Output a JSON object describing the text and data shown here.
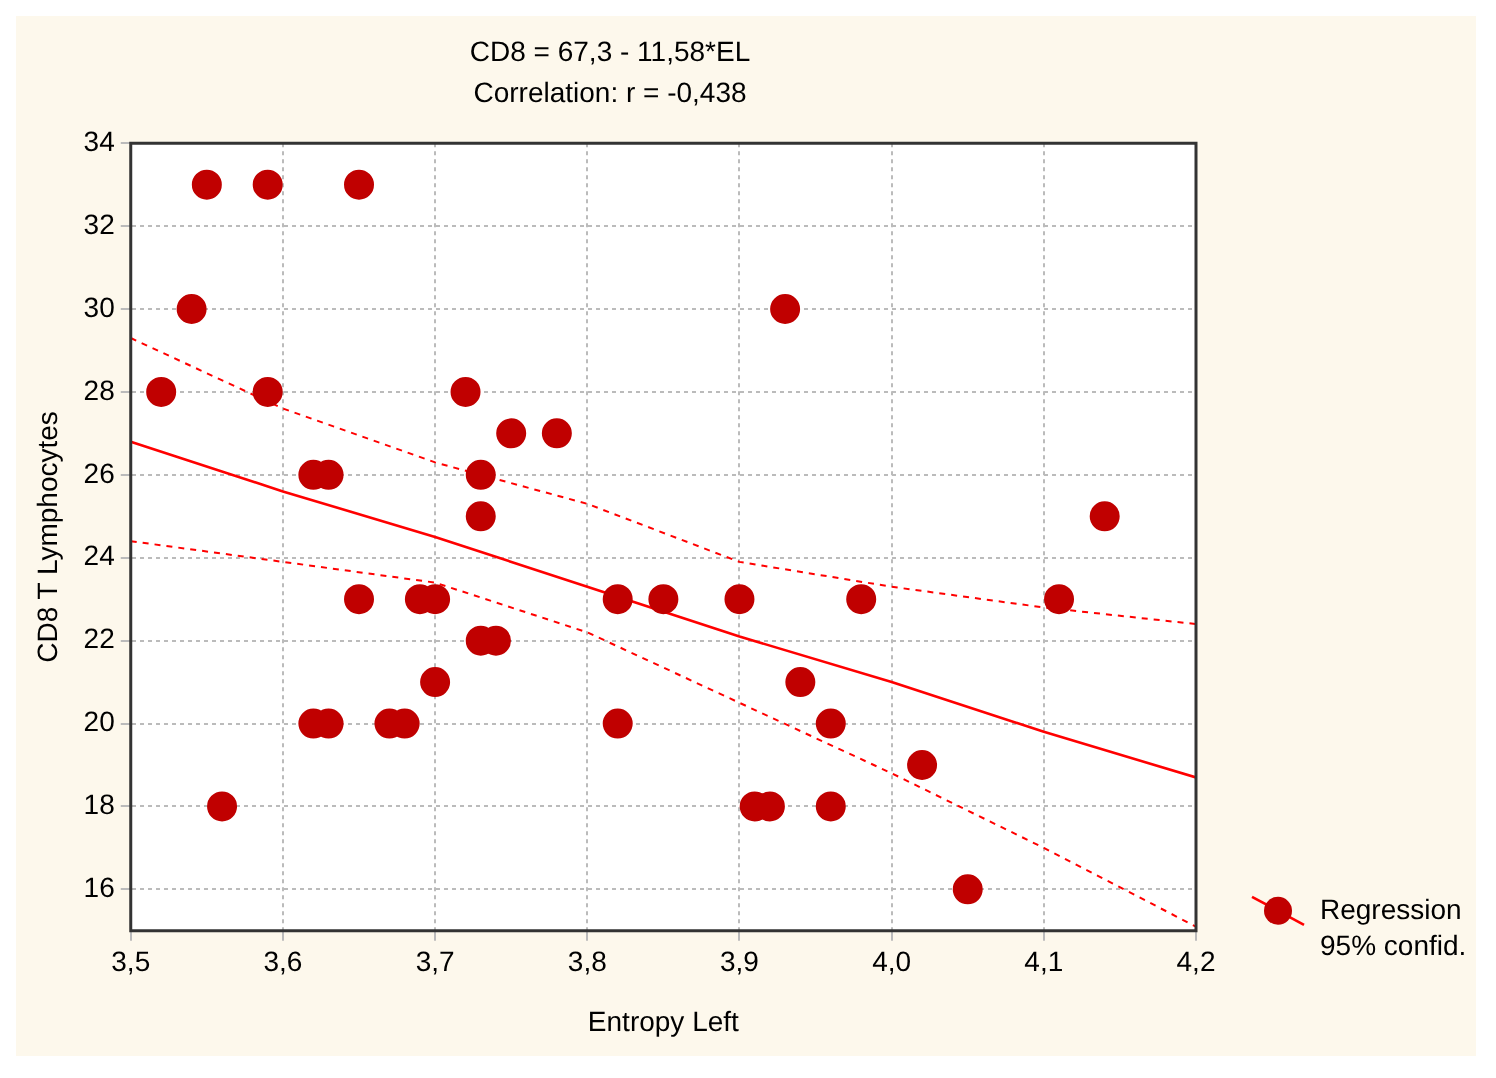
{
  "chart_data": {
    "type": "scatter",
    "title": "CD8 = 67,3 - 11,58*EL",
    "subtitle": "Correlation: r = -0,438",
    "xlabel": "Entropy Left",
    "ylabel": "CD8 T Lymphocytes",
    "series": [
      {
        "name": "Regression 95% confid.",
        "color": "#c00000",
        "marker": "circle",
        "x": [
          3.52,
          3.54,
          3.55,
          3.56,
          3.59,
          3.59,
          3.62,
          3.63,
          3.62,
          3.63,
          3.65,
          3.65,
          3.67,
          3.68,
          3.69,
          3.7,
          3.7,
          3.72,
          3.73,
          3.73,
          3.73,
          3.74,
          3.75,
          3.78,
          3.82,
          3.82,
          3.85,
          3.9,
          3.93,
          3.94,
          3.91,
          3.92,
          3.96,
          3.96,
          3.98,
          4.02,
          4.05,
          4.11,
          4.14
        ],
        "values": [
          28,
          30,
          33,
          18,
          33,
          28,
          26,
          26,
          20,
          20,
          33,
          23,
          20,
          20,
          23,
          23,
          21,
          28,
          26,
          25,
          22,
          22,
          27,
          27,
          23,
          20,
          23,
          23,
          30,
          21,
          18,
          18,
          20,
          18,
          23,
          19,
          16,
          23,
          25
        ]
      },
      {
        "type": "line",
        "color": "#ff0000",
        "line_style": "solid",
        "marker": "none",
        "x": [
          3.5,
          3.6,
          3.7,
          3.8,
          3.9,
          4.0,
          4.1,
          4.2
        ],
        "values": [
          26.8,
          25.6,
          24.5,
          23.3,
          22.1,
          21.0,
          19.8,
          18.7
        ]
      },
      {
        "type": "line",
        "color": "#ff0000",
        "line_style": "dotted",
        "marker": "none",
        "x": [
          3.5,
          3.6,
          3.7,
          3.8,
          3.9,
          4.0,
          4.1,
          4.2
        ],
        "values": [
          24.4,
          23.9,
          23.4,
          22.2,
          20.5,
          18.8,
          17.0,
          15.1
        ]
      },
      {
        "type": "line",
        "color": "#ff0000",
        "line_style": "dotted",
        "marker": "none",
        "x": [
          3.5,
          3.6,
          3.7,
          3.8,
          3.9,
          4.0,
          4.1,
          4.2
        ],
        "values": [
          29.3,
          27.6,
          26.3,
          25.3,
          23.9,
          23.3,
          22.8,
          22.4
        ]
      }
    ],
    "xlim": [
      3.5,
      4.2
    ],
    "xticks": [
      {
        "value": 3.5,
        "label": "3,5"
      },
      {
        "value": 3.6,
        "label": "3,6"
      },
      {
        "value": 3.7,
        "label": "3,7"
      },
      {
        "value": 3.8,
        "label": "3,8"
      },
      {
        "value": 3.9,
        "label": "3,9"
      },
      {
        "value": 4.0,
        "label": "4,0"
      },
      {
        "value": 4.1,
        "label": "4,1"
      },
      {
        "value": 4.2,
        "label": "4,2"
      }
    ],
    "ylim": [
      15,
      34
    ],
    "yticks": [
      16,
      18,
      20,
      22,
      24,
      26,
      28,
      30,
      32,
      34
    ],
    "grid": true,
    "legend": "right"
  }
}
